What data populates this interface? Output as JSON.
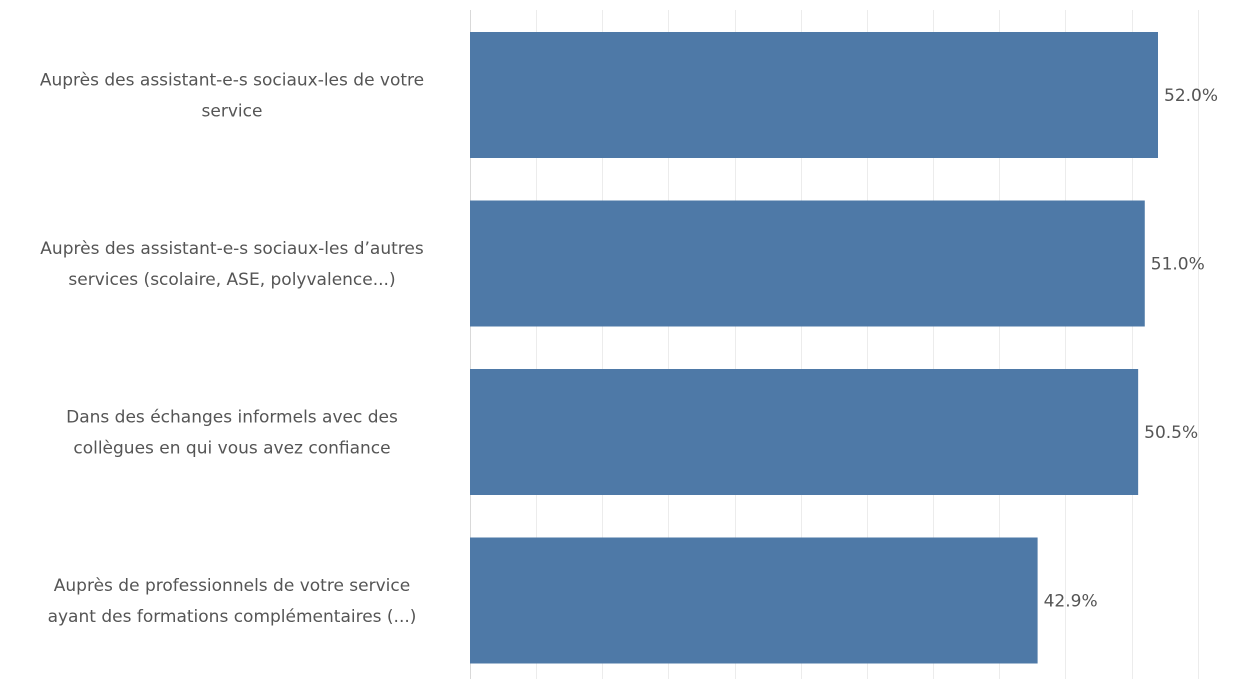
{
  "chart_data": {
    "type": "bar",
    "orientation": "horizontal",
    "categories": [
      [
        "Auprès des assistant-e-s sociaux-les de votre",
        "service"
      ],
      [
        "Auprès des assistant-e-s sociaux-les d’autres",
        "services (scolaire, ASE, polyvalence...)"
      ],
      [
        "Dans des échanges informels avec des",
        "collègues en qui vous avez confiance"
      ],
      [
        "Auprès de professionnels de votre service",
        "ayant des formations complémentaires (...)"
      ]
    ],
    "values": [
      52.0,
      51.0,
      50.5,
      42.9
    ],
    "value_labels": [
      "52.0%",
      "51.0%",
      "50.5%",
      "42.9%"
    ],
    "bar_color": "#4e79a7",
    "xlim": [
      0,
      55
    ],
    "grid": true,
    "title": "",
    "xlabel": "",
    "ylabel": ""
  }
}
